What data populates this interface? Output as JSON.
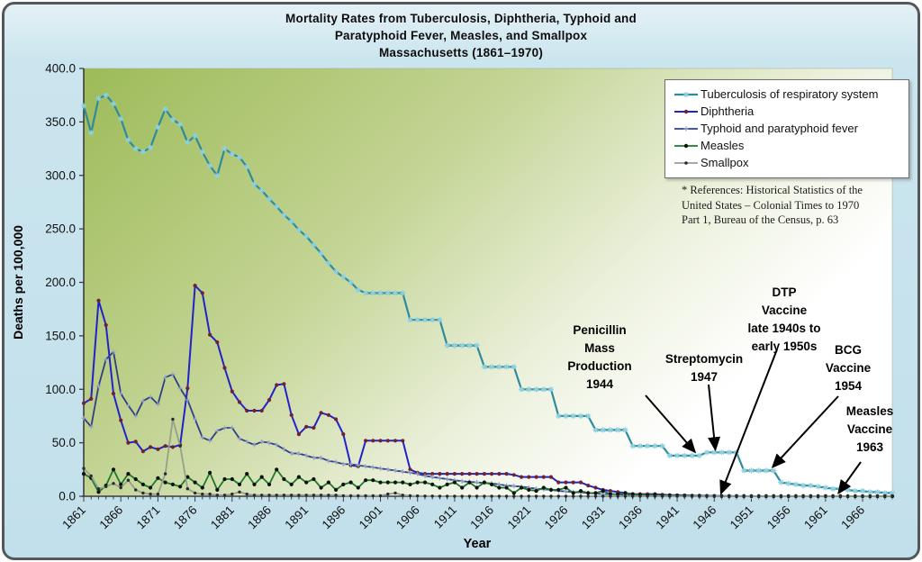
{
  "title_lines": [
    "Mortality Rates from Tuberculosis, Diphtheria, Typhoid and",
    "Paratyphoid Fever, Measles, and Smallpox",
    "Massachusetts (1861–1970)"
  ],
  "references_lines": [
    "* References: Historical Statistics of the",
    "United States – Colonial Times to 1970",
    "Part 1, Bureau of the Census, p. 63"
  ],
  "axes": {
    "y_title": "Deaths per 100,000",
    "x_title": "Year",
    "y_tick_labels": [
      "0.0",
      "50.0",
      "100.0",
      "150.0",
      "200.0",
      "250.0",
      "300.0",
      "350.0",
      "400.0"
    ],
    "x_tick_labels": [
      "1861",
      "1866",
      "1871",
      "1876",
      "1881",
      "1886",
      "1891",
      "1896",
      "1901",
      "1906",
      "1911",
      "1916",
      "1921",
      "1926",
      "1931",
      "1936",
      "1941",
      "1946",
      "1951",
      "1956",
      "1961",
      "1966"
    ]
  },
  "annotations": [
    {
      "id": "penicillin",
      "lines": [
        "Penicillin",
        "Mass",
        "Production",
        "1944"
      ],
      "target_year": 1944,
      "target_value": 38
    },
    {
      "id": "streptomycin",
      "lines": [
        "Streptomycin",
        "1947"
      ],
      "target_year": 1947,
      "target_value": 41
    },
    {
      "id": "dtp",
      "lines": [
        "DTP",
        "Vaccine",
        "late 1940s to",
        "early 1950s"
      ],
      "target_year": 1948,
      "target_value": 1
    },
    {
      "id": "bcg",
      "lines": [
        "BCG",
        "Vaccine",
        "1954"
      ],
      "target_year": 1954,
      "target_value": 24
    },
    {
      "id": "measles_vaccine",
      "lines": [
        "Measles",
        "Vaccine",
        "1963"
      ],
      "target_year": 1963,
      "target_value": 0.5
    }
  ],
  "chart_data": {
    "type": "line",
    "title": "Mortality Rates from Tuberculosis, Diphtheria, Typhoid and Paratyphoid Fever, Measles, and Smallpox Massachusetts (1861–1970)",
    "xlabel": "Year",
    "ylabel": "Deaths per 100,000",
    "x_start": 1861,
    "x_end": 1970,
    "x_step": 1,
    "ylim": [
      0,
      400
    ],
    "grid": false,
    "legend_position": "top-right",
    "plot_background": {
      "gradient_from": "#9dbb58",
      "gradient_to": "#ffffff"
    },
    "series": [
      {
        "name": "Tuberculosis of respiratory system",
        "color": "#2e8b9c",
        "marker": "star8",
        "marker_color": "#8ed0e0",
        "line_width": 2.2,
        "values": [
          365,
          340,
          372,
          375,
          367,
          353,
          333,
          325,
          322,
          326,
          345,
          362,
          352,
          348,
          331,
          337,
          322,
          309,
          300,
          325,
          320,
          317,
          308,
          292,
          286,
          278,
          271,
          263,
          257,
          249,
          243,
          235,
          227,
          218,
          210,
          205,
          200,
          193,
          190,
          190,
          190,
          190,
          190,
          190,
          165,
          165,
          165,
          165,
          165,
          141,
          141,
          141,
          141,
          141,
          121,
          121,
          121,
          121,
          121,
          100,
          100,
          100,
          100,
          100,
          75,
          75,
          75,
          75,
          75,
          62,
          62,
          62,
          62,
          62,
          47,
          47,
          47,
          47,
          47,
          38,
          38,
          38,
          38,
          38,
          41,
          41,
          41,
          41,
          41,
          24,
          24,
          24,
          24,
          24,
          13,
          12,
          11,
          10,
          10,
          9,
          8,
          7,
          7,
          6,
          5,
          5,
          4,
          4,
          3,
          3
        ]
      },
      {
        "name": "Diphtheria",
        "color": "#2222cc",
        "marker": "dot",
        "marker_color": "#70222e",
        "line_width": 2,
        "values": [
          87,
          91,
          183,
          160,
          96,
          71,
          50,
          51,
          42,
          46,
          44,
          47,
          46,
          48,
          101,
          197,
          190,
          151,
          144,
          120,
          98,
          88,
          80,
          80,
          80,
          90,
          104,
          105,
          76,
          58,
          65,
          64,
          78,
          76,
          72,
          58,
          29,
          28,
          52,
          52,
          52,
          52,
          52,
          52,
          25,
          22,
          21,
          21,
          21,
          21,
          21,
          21,
          21,
          21,
          21,
          21,
          21,
          21,
          20,
          18,
          18,
          18,
          18,
          18,
          13,
          13,
          13,
          13,
          10,
          8,
          6,
          5,
          4,
          3,
          2,
          2,
          2,
          2,
          1.5,
          1,
          1,
          0.8,
          0.6,
          0.5,
          0.4,
          0.3,
          0.2,
          0.2,
          0.1,
          0.1,
          0,
          0,
          0,
          0,
          0,
          0,
          0,
          0,
          0,
          0,
          0,
          0,
          0,
          0,
          0,
          0,
          0,
          0,
          0,
          0
        ]
      },
      {
        "name": "Typhoid and paratyphoid fever",
        "color": "#303f85",
        "marker": "plus",
        "marker_color": "#93a3c6",
        "line_width": 1.8,
        "values": [
          73,
          65,
          103,
          128,
          135,
          96,
          85,
          75,
          89,
          93,
          86,
          111,
          114,
          101,
          90,
          72,
          55,
          52,
          61,
          64,
          64,
          54,
          51,
          48,
          51,
          50,
          48,
          44,
          40,
          40,
          38,
          36,
          36,
          33,
          32,
          30,
          30,
          29,
          28,
          27,
          26,
          25,
          24,
          23,
          22,
          21,
          19,
          18,
          17,
          16,
          15,
          14,
          13.5,
          13,
          12.5,
          12,
          11,
          10,
          9.5,
          9,
          8,
          7,
          6.5,
          6,
          5,
          4.5,
          4,
          3.5,
          3,
          2.5,
          2,
          2,
          1.8,
          1.5,
          1.2,
          1,
          0.8,
          0.7,
          0.6,
          0.5,
          0.4,
          0.3,
          0.3,
          0.2,
          0.2,
          0.1,
          0.1,
          0.1,
          0.1,
          0.1,
          0,
          0,
          0,
          0,
          0,
          0,
          0,
          0,
          0,
          0,
          0,
          0,
          0,
          0,
          0,
          0,
          0,
          0,
          0,
          0
        ]
      },
      {
        "name": "Measles",
        "color": "#1d7a2a",
        "marker": "dot",
        "marker_color": "#101010",
        "line_width": 1.8,
        "values": [
          21,
          17,
          4,
          10,
          25,
          11,
          21,
          16,
          11,
          8,
          17,
          13,
          11,
          9,
          18,
          13,
          8,
          22,
          6,
          16,
          16,
          11,
          21,
          11,
          18,
          11,
          25,
          16,
          11,
          18,
          13,
          16,
          8,
          13,
          6,
          11,
          13,
          8,
          15,
          15,
          13,
          13,
          13,
          13,
          11,
          13,
          13,
          11,
          8,
          11,
          13,
          8,
          13,
          8,
          13,
          11,
          8,
          8,
          3,
          8,
          6,
          5,
          8,
          6,
          6,
          8,
          3,
          5,
          3,
          3,
          5,
          2,
          2,
          3,
          2,
          1.5,
          1,
          1.5,
          0.5,
          1,
          0.5,
          0.5,
          0.3,
          0.3,
          0.2,
          0.2,
          0.2,
          0.1,
          0.1,
          0.1,
          0.1,
          0.1,
          0.1,
          0.1,
          0.1,
          0.1,
          0.1,
          0.1,
          0.1,
          0.1,
          0.1,
          0.1,
          0.1,
          0,
          0,
          0,
          0,
          0,
          0,
          0
        ]
      },
      {
        "name": "Smallpox",
        "color": "#98a089",
        "marker": "dot_small",
        "marker_color": "#232a38",
        "line_width": 1.8,
        "values": [
          26,
          19,
          7,
          9,
          12,
          8,
          15,
          6,
          3,
          2,
          2,
          21,
          72,
          47,
          7,
          3,
          2,
          2,
          1,
          1,
          2,
          4,
          2,
          1,
          1,
          1,
          1,
          1,
          1,
          1,
          1,
          1,
          1,
          1,
          1,
          0.5,
          0.5,
          0.5,
          0.5,
          0.5,
          0.5,
          2,
          3,
          1,
          0.5,
          0.3,
          0.2,
          0.2,
          0.1,
          0.1,
          0,
          0,
          0,
          0,
          0,
          0,
          0,
          0,
          0,
          0,
          0,
          0,
          0,
          0,
          0,
          0,
          0,
          0,
          0,
          0,
          0,
          0,
          0,
          0,
          0,
          0,
          0,
          0,
          0,
          0,
          0,
          0,
          0,
          0,
          0,
          0,
          0,
          0,
          0,
          0,
          0,
          0,
          0,
          0,
          0,
          0,
          0,
          0,
          0,
          0,
          0,
          0,
          0,
          0,
          0,
          0,
          0,
          0,
          0,
          0
        ]
      }
    ]
  }
}
